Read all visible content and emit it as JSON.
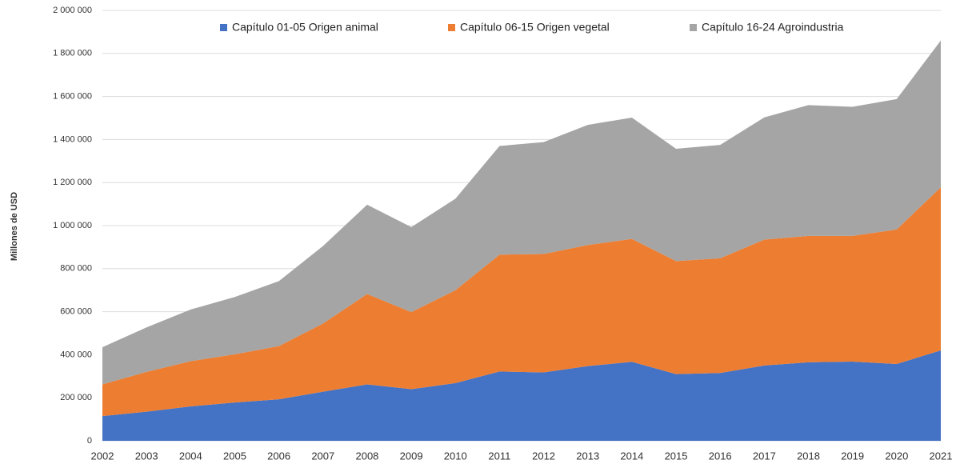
{
  "chart_data": {
    "type": "area",
    "stacked": true,
    "y_label": "Millones de USD",
    "categories": [
      "2002",
      "2003",
      "2004",
      "2005",
      "2006",
      "2007",
      "2008",
      "2009",
      "2010",
      "2011",
      "2012",
      "2013",
      "2014",
      "2015",
      "2016",
      "2017",
      "2018",
      "2019",
      "2020",
      "2021"
    ],
    "series": [
      {
        "name": "Capítulo 01-05 Origen animal",
        "color": "#4472c4",
        "values": [
          115000,
          135000,
          160000,
          178000,
          193000,
          228000,
          262000,
          240000,
          268000,
          322000,
          318000,
          347000,
          367000,
          310000,
          315000,
          350000,
          365000,
          368000,
          357000,
          420000
        ]
      },
      {
        "name": "Capítulo 06-15 Origen vegetal",
        "color": "#ed7d31",
        "values": [
          147000,
          185000,
          210000,
          224000,
          247000,
          317000,
          420000,
          358000,
          432000,
          543000,
          550000,
          563000,
          571000,
          525000,
          533000,
          585000,
          587000,
          584000,
          625000,
          758000
        ]
      },
      {
        "name": "Capítulo 16-24 Agroindustria",
        "color": "#a5a5a5",
        "values": [
          173000,
          207000,
          240000,
          266000,
          302000,
          360000,
          415000,
          395000,
          425000,
          505000,
          520000,
          558000,
          564000,
          522000,
          527000,
          568000,
          608000,
          600000,
          606000,
          682000
        ]
      }
    ],
    "ylim": [
      0,
      2000000
    ],
    "yticks": [
      0,
      {
        "value": 200000,
        "label": "200 000"
      },
      {
        "value": 400000,
        "label": "400 000"
      },
      {
        "value": 600000,
        "label": "600 000"
      },
      {
        "value": 800000,
        "label": "800 000"
      },
      {
        "value": 1000000,
        "label": "1 000 000"
      },
      {
        "value": 1200000,
        "label": "1 200 000"
      },
      {
        "value": 1400000,
        "label": "1 400 000"
      },
      {
        "value": 1600000,
        "label": "1 600 000"
      },
      {
        "value": 1800000,
        "label": "1 800 000"
      },
      {
        "value": 2000000,
        "label": "2 000 000"
      }
    ],
    "grid": true,
    "legend": "top"
  }
}
